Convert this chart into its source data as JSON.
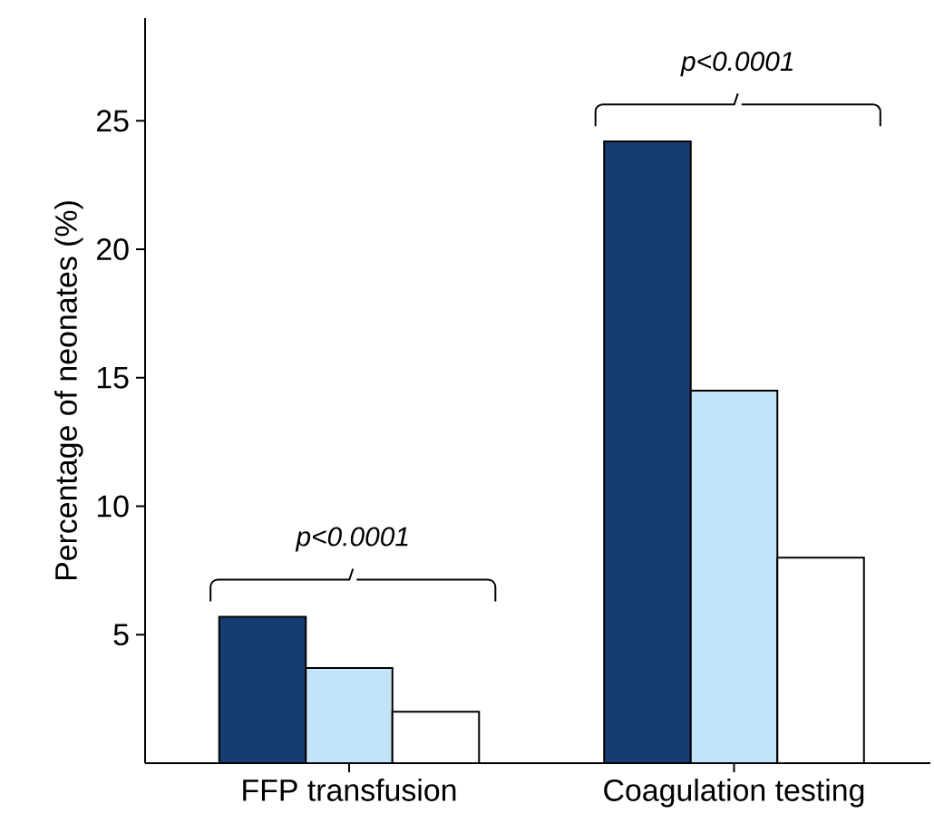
{
  "chart_data": {
    "type": "bar",
    "ylabel": "Percentage of neonates (%)",
    "categories": [
      "FFP transfusion",
      "Coagulation testing"
    ],
    "series": [
      {
        "color": "#173c72",
        "values": [
          5.7,
          24.2
        ]
      },
      {
        "color": "#c2e4f8",
        "values": [
          3.7,
          14.5
        ]
      },
      {
        "color": "#ffffff",
        "values": [
          2.0,
          8.0
        ]
      }
    ],
    "ylim": [
      0,
      29
    ],
    "yticks": [
      5,
      10,
      15,
      20,
      25
    ],
    "annotations": [
      "p<0.0001",
      "p<0.0001"
    ]
  }
}
